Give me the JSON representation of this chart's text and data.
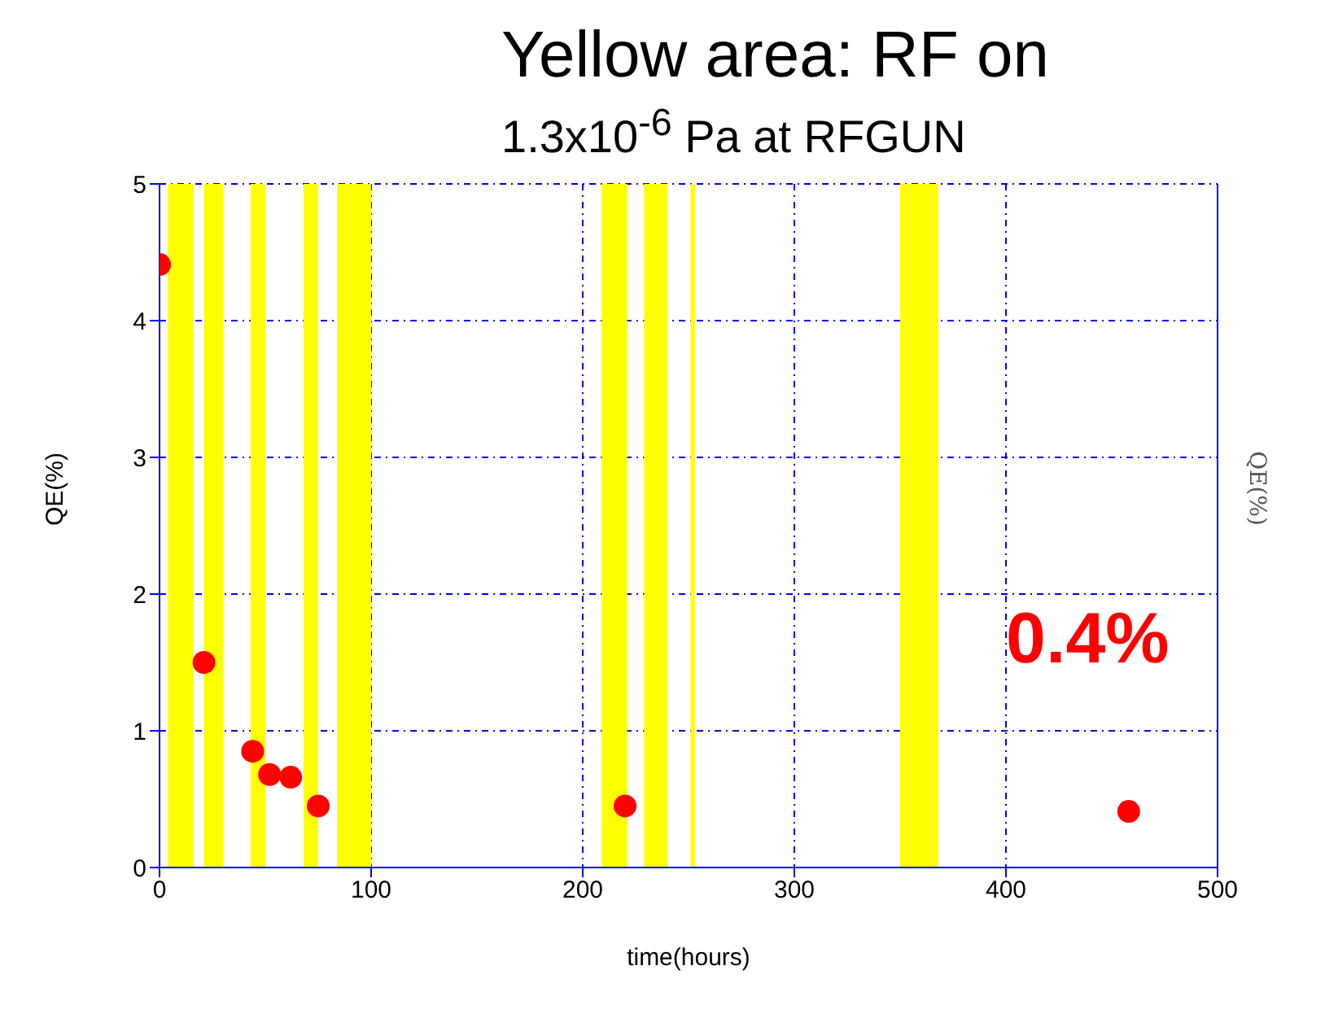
{
  "chart_data": {
    "type": "scatter",
    "title": "Yellow area: RF on",
    "annotations": [
      "1.3x10$^{-6}$ Pa at RFGUN",
      "0.4%"
    ],
    "xlabel": "time(hours)",
    "ylabel": "QE(%)",
    "y2label": "QE(%)",
    "x": [
      0,
      21,
      44,
      52,
      62,
      75,
      220,
      458
    ],
    "series": [
      {
        "color": "#ff0000",
        "values": [
          4.41,
          1.5,
          0.85,
          0.68,
          0.66,
          0.45,
          0.45,
          0.41
        ]
      }
    ],
    "xlim": [
      0,
      500
    ],
    "xticks": [
      0,
      100,
      200,
      300,
      400,
      500
    ],
    "ylim": [
      0,
      5
    ],
    "yticks": [
      0,
      1,
      2,
      3,
      4,
      5
    ],
    "grid": true,
    "marker": "circle",
    "legend": false,
    "bands": [
      {
        "axis": "x",
        "from": 4,
        "to": 16,
        "color": "#ffff00"
      },
      {
        "axis": "x",
        "from": 21,
        "to": 30,
        "color": "#ffff00"
      },
      {
        "axis": "x",
        "from": 43,
        "to": 50,
        "color": "#ffff00"
      },
      {
        "axis": "x",
        "from": 68,
        "to": 75,
        "color": "#ffff00"
      },
      {
        "axis": "x",
        "from": 84,
        "to": 100,
        "color": "#ffff00"
      },
      {
        "axis": "x",
        "from": 209,
        "to": 221,
        "color": "#ffff00"
      },
      {
        "axis": "x",
        "from": 229,
        "to": 240,
        "color": "#ffff00"
      },
      {
        "axis": "x",
        "from": 251,
        "to": 253,
        "color": "#ffff00"
      },
      {
        "axis": "x",
        "from": 350,
        "to": 368,
        "color": "#ffff00"
      }
    ]
  }
}
